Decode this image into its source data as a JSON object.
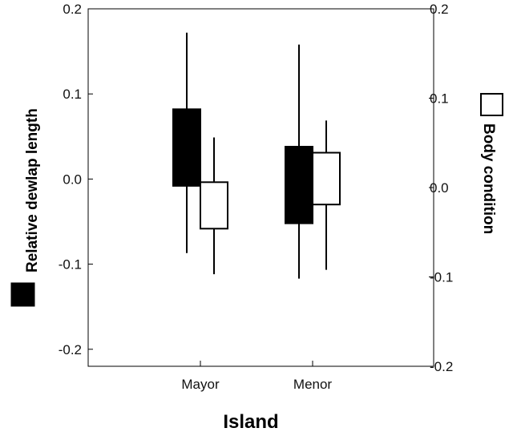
{
  "chart_data": {
    "type": "box",
    "xlabel": "Island",
    "categories": [
      "Mayor",
      "Menor"
    ],
    "left_axis": {
      "label": "Relative dewlap length",
      "ylim": [
        -0.22,
        0.2
      ],
      "ticks": [
        0.2,
        0.1,
        0.0,
        -0.1,
        -0.2
      ],
      "tick_labels": [
        "0.2",
        "0.1",
        "0.0",
        "-0.1",
        "-0.2"
      ]
    },
    "right_axis": {
      "label": "Body condition",
      "ylim": [
        -0.2,
        0.2
      ],
      "ticks": [
        0.2,
        0.1,
        0.0,
        -0.1,
        -0.2
      ],
      "tick_labels": [
        "0.2",
        "0.1",
        "0.0",
        "-0.1",
        "-0.2"
      ]
    },
    "series": [
      {
        "name": "Relative dewlap length",
        "axis": "left",
        "fill": "#000000",
        "boxes": [
          {
            "category": "Mayor",
            "whisker_low": -0.087,
            "box_low": -0.008,
            "box_high": 0.082,
            "whisker_high": 0.172
          },
          {
            "category": "Menor",
            "whisker_low": -0.117,
            "box_low": -0.052,
            "box_high": 0.038,
            "whisker_high": 0.158
          }
        ]
      },
      {
        "name": "Body condition",
        "axis": "right",
        "fill": "#ffffff",
        "boxes": [
          {
            "category": "Mayor",
            "whisker_low": -0.097,
            "box_low": -0.046,
            "box_high": 0.006,
            "whisker_high": 0.056
          },
          {
            "category": "Menor",
            "whisker_low": -0.092,
            "box_low": -0.019,
            "box_high": 0.039,
            "whisker_high": 0.075
          }
        ]
      }
    ],
    "legend": {
      "left_swatch": "filled",
      "right_swatch": "open"
    },
    "grid": false
  }
}
